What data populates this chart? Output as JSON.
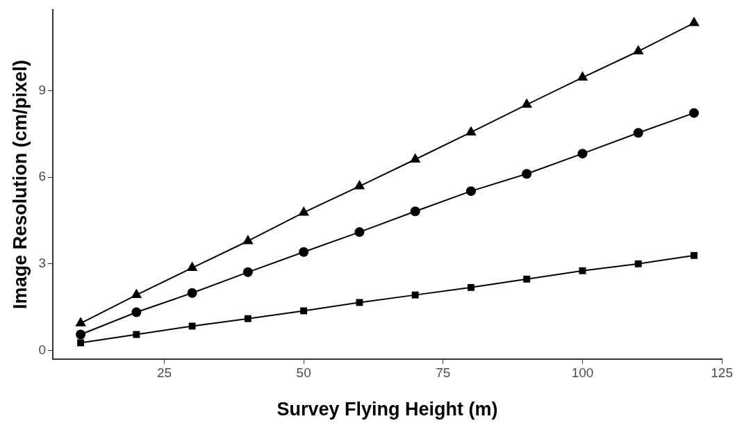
{
  "chart_data": {
    "type": "line",
    "xlabel": "Survey Flying Height (m)",
    "ylabel": "Image Resolution (cm/pixel)",
    "x": [
      10,
      20,
      30,
      40,
      50,
      60,
      70,
      80,
      90,
      100,
      110,
      120
    ],
    "series": [
      {
        "color": "#000000",
        "marker": "triangle",
        "values": [
          0.94,
          1.92,
          2.86,
          3.79,
          4.78,
          5.69,
          6.62,
          7.56,
          8.52,
          9.46,
          10.37,
          11.35
        ]
      },
      {
        "color": "#000000",
        "marker": "circle",
        "values": [
          0.55,
          1.32,
          1.99,
          2.71,
          3.41,
          4.1,
          4.82,
          5.52,
          6.12,
          6.82,
          7.54,
          8.23
        ]
      },
      {
        "color": "#000000",
        "marker": "square",
        "values": [
          0.26,
          0.55,
          0.84,
          1.1,
          1.37,
          1.66,
          1.92,
          2.18,
          2.47,
          2.76,
          3.0,
          3.29
        ]
      }
    ],
    "xlim": [
      5,
      125
    ],
    "xticks": [
      25,
      50,
      75,
      100,
      125
    ],
    "ylim": [
      -0.3,
      11.8
    ],
    "yticks": [
      0,
      3,
      6,
      9
    ],
    "grid": false,
    "legend": false,
    "line_style": "solid"
  }
}
